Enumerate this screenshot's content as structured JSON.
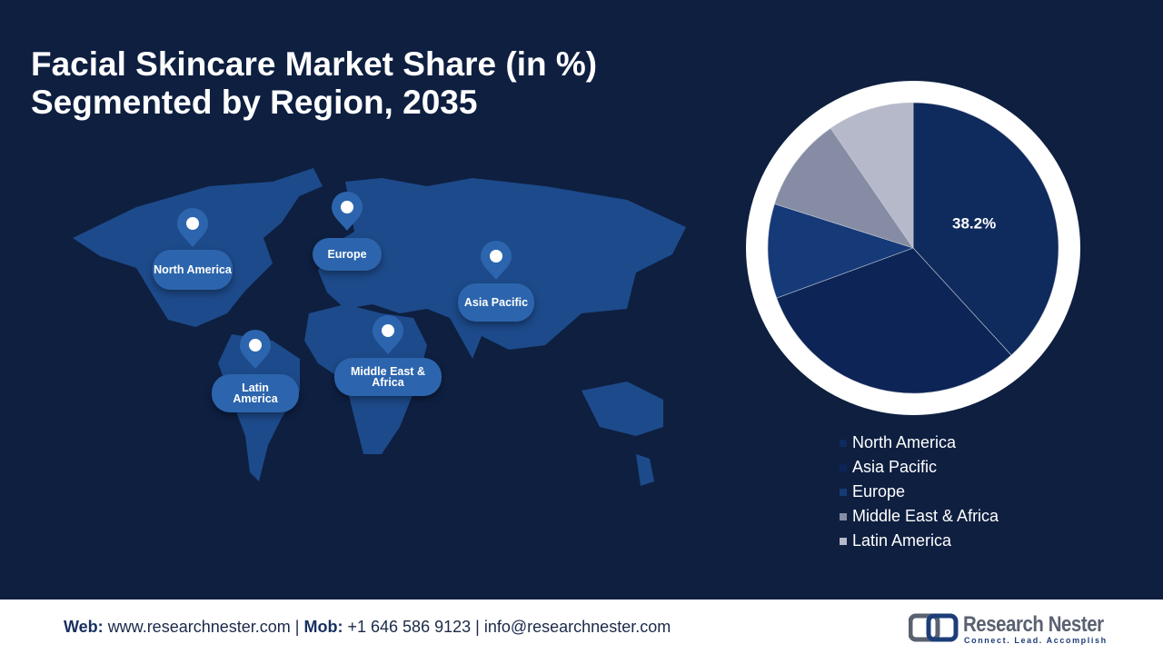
{
  "chart_data": {
    "type": "pie",
    "title": [
      "Facial Skincare Market Share (in %)",
      "Segmented by Region, 2035"
    ],
    "categories": [
      "North America",
      "Asia Pacific",
      "Europe",
      "Middle East & Africa",
      "Latin America"
    ],
    "values": [
      38.2,
      31.2,
      10.5,
      10.5,
      9.6
    ],
    "value_labels": [
      "38.2%",
      null,
      null,
      null,
      null
    ],
    "colors": [
      "#0f2a5c",
      "#0d2556",
      "#163a78",
      "#858ca3",
      "#b5b9c9"
    ]
  },
  "map": {
    "pins": [
      "North America",
      "Europe",
      "Asia Pacific",
      "Middle East & Africa",
      "Latin America"
    ]
  },
  "footer": {
    "web_label": "Web:",
    "web": "www.researchnester.com",
    "separator": "|",
    "mob_label": "Mob:",
    "mob": "+1 646 586 9123",
    "email": "info@researchnester.com",
    "logo": "Research Nester",
    "tagline": "Connect. Lead. Accomplish"
  }
}
